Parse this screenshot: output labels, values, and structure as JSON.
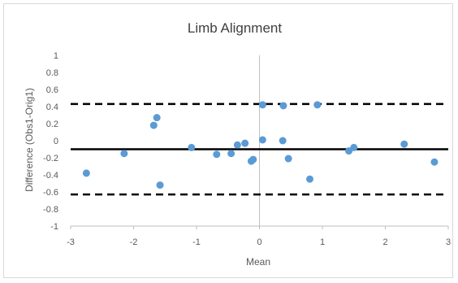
{
  "chart_data": {
    "type": "scatter",
    "title": "Limb Alignment",
    "xlabel": "Mean",
    "ylabel": "Difference (Obs1-Orig1)",
    "xlim": [
      -3,
      3
    ],
    "ylim": [
      -1,
      1
    ],
    "x_ticks": [
      "-3",
      "-2",
      "-1",
      "0",
      "1",
      "2",
      "3"
    ],
    "y_ticks": [
      "-1",
      "-0.8",
      "-0.6",
      "-0.4",
      "-0.2",
      "0",
      "0.2",
      "0.4",
      "0.6",
      "0.8",
      "1"
    ],
    "grid": false,
    "legend": "none",
    "reference_lines": [
      {
        "role": "upper-limit",
        "y": 0.43,
        "style": "dashed"
      },
      {
        "role": "mean-difference",
        "y": -0.1,
        "style": "solid"
      },
      {
        "role": "lower-limit",
        "y": -0.63,
        "style": "dashed"
      }
    ],
    "points": [
      {
        "x": -2.75,
        "y": -0.38
      },
      {
        "x": -2.15,
        "y": -0.15
      },
      {
        "x": -1.68,
        "y": 0.18
      },
      {
        "x": -1.63,
        "y": 0.27
      },
      {
        "x": -1.58,
        "y": -0.52
      },
      {
        "x": -1.08,
        "y": -0.08
      },
      {
        "x": -0.68,
        "y": -0.16
      },
      {
        "x": -0.45,
        "y": -0.15
      },
      {
        "x": -0.35,
        "y": -0.05
      },
      {
        "x": -0.23,
        "y": -0.03
      },
      {
        "x": -0.13,
        "y": -0.24
      },
      {
        "x": -0.1,
        "y": -0.22
      },
      {
        "x": 0.05,
        "y": 0.42
      },
      {
        "x": 0.05,
        "y": 0.01
      },
      {
        "x": 0.37,
        "y": 0.0
      },
      {
        "x": 0.38,
        "y": 0.41
      },
      {
        "x": 0.46,
        "y": -0.21
      },
      {
        "x": 0.8,
        "y": -0.45
      },
      {
        "x": 0.92,
        "y": 0.42
      },
      {
        "x": 1.42,
        "y": -0.12
      },
      {
        "x": 1.5,
        "y": -0.08
      },
      {
        "x": 2.3,
        "y": -0.04
      },
      {
        "x": 2.78,
        "y": -0.25
      }
    ],
    "colors": {
      "points": "#5b9bd5",
      "lines": "#000000",
      "axis": "#bfbfbf",
      "text": "#595959"
    }
  }
}
